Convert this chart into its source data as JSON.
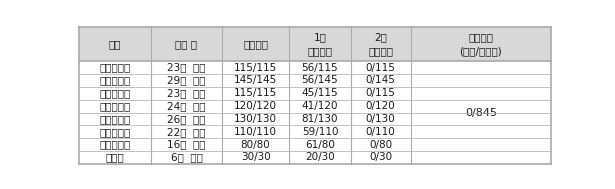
{
  "headers": [
    "지역",
    "시료 수",
    "증균배양",
    "1차\n분리배양",
    "2차\n분리배양",
    "분석결과\n(양성/시료수)"
  ],
  "rows": [
    [
      "울산광역시",
      "23개  제품",
      "115/115",
      "56/115",
      "0/115",
      ""
    ],
    [
      "부산광역시",
      "29개  제품",
      "145/145",
      "56/145",
      "0/145",
      ""
    ],
    [
      "대구광역시",
      "23개  제품",
      "115/115",
      "45/115",
      "0/115",
      ""
    ],
    [
      "대전광역시",
      "24개  제품",
      "120/120",
      "41/120",
      "0/120",
      "0/845"
    ],
    [
      "광주광역시",
      "26개  제품",
      "130/130",
      "81/130",
      "0/130",
      ""
    ],
    [
      "서울특별시",
      "22개  제품",
      "110/110",
      "59/110",
      "0/110",
      ""
    ],
    [
      "인천광역시",
      "16개  제품",
      "80/80",
      "61/80",
      "0/80",
      ""
    ],
    [
      "경기도",
      "6개  제품",
      "30/30",
      "20/30",
      "0/30",
      ""
    ]
  ],
  "bg_header": "#d8d8d8",
  "bg_body": "#ffffff",
  "line_color": "#aaaaaa",
  "text_color": "#1a1a1a",
  "fontsize": 7.5,
  "fig_width": 6.15,
  "fig_height": 1.89,
  "dpi": 100
}
